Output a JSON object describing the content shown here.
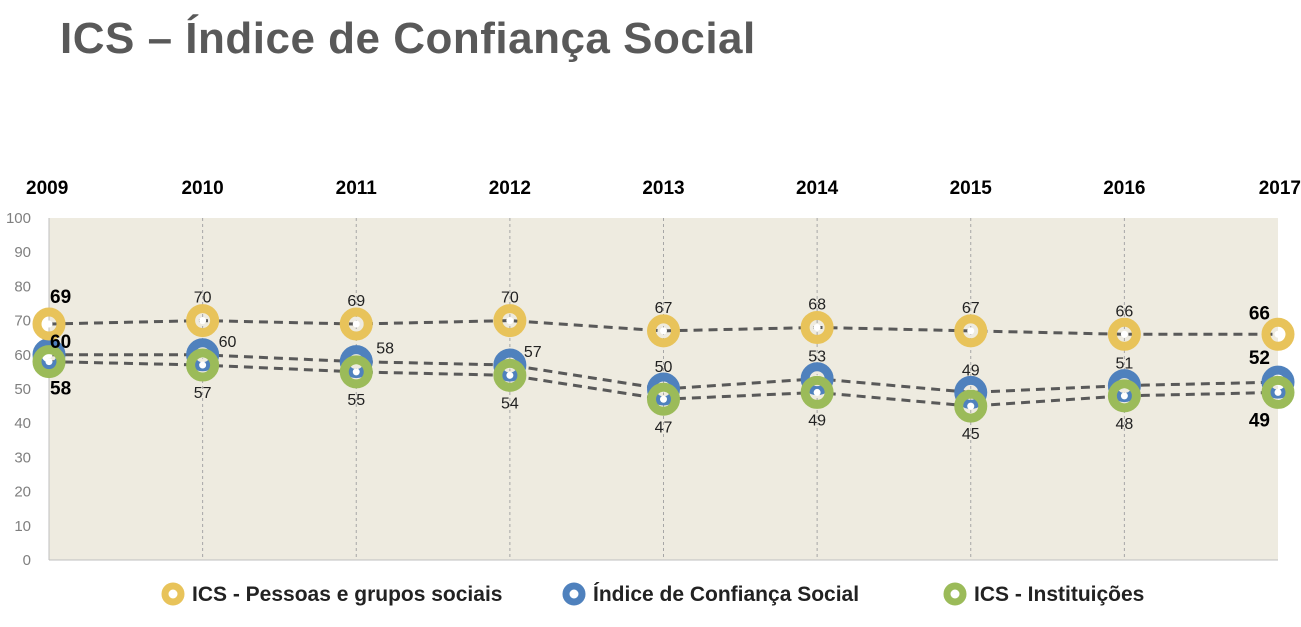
{
  "title": "ICS – Índice de Confiança Social",
  "chart_data": {
    "type": "line",
    "title": "ICS – Índice de Confiança Social",
    "x": [
      "2009",
      "2010",
      "2011",
      "2012",
      "2013",
      "2014",
      "2015",
      "2016",
      "2017"
    ],
    "ylim": [
      0,
      100
    ],
    "yticks": [
      0,
      10,
      20,
      30,
      40,
      50,
      60,
      70,
      80,
      90,
      100
    ],
    "grid": "vertical dashed",
    "legend_position": "bottom",
    "series": [
      {
        "name": "ICS - Pessoas e grupos sociais",
        "color": "#e8c35a",
        "values": [
          69,
          70,
          69,
          70,
          67,
          68,
          67,
          66,
          66
        ]
      },
      {
        "name": "Índice de Confiança Social",
        "color": "#4f81bd",
        "values": [
          60,
          60,
          58,
          57,
          50,
          53,
          49,
          51,
          52
        ]
      },
      {
        "name": "ICS - Instituições",
        "color": "#9bbb59",
        "values": [
          58,
          57,
          55,
          54,
          47,
          49,
          45,
          48,
          49
        ]
      }
    ]
  },
  "colors": {
    "plot_background": "#eeebe0",
    "line": "#595959",
    "grid": "#a6a6a6"
  }
}
